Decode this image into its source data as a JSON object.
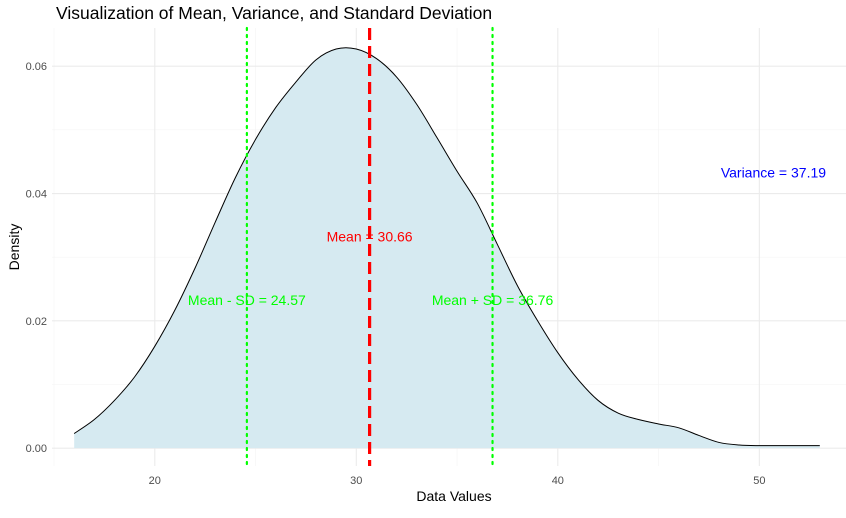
{
  "chart_data": {
    "type": "area",
    "title": "Visualization of Mean, Variance, and Standard Deviation",
    "xlabel": "Data Values",
    "ylabel": "Density",
    "xlim": [
      14.9,
      54.3
    ],
    "ylim": [
      -0.0028,
      0.066
    ],
    "x_ticks": [
      20,
      30,
      40,
      50
    ],
    "y_ticks": [
      0.0,
      0.02,
      0.04,
      0.06
    ],
    "x_tick_labels": [
      "20",
      "30",
      "40",
      "50"
    ],
    "y_tick_labels": [
      "0.00",
      "0.02",
      "0.04",
      "0.06"
    ],
    "grid": true,
    "colors": {
      "fill": "#d6eaf1",
      "curve": "#000000",
      "mean_line": "#ff0000",
      "sd_lines": "#00ff00",
      "variance_text": "#0000ff"
    },
    "series": [
      {
        "x": [
          16.0,
          17.0,
          18.0,
          19.0,
          20.0,
          21.0,
          22.0,
          23.0,
          24.0,
          25.0,
          26.0,
          27.0,
          28.0,
          29.0,
          30.0,
          31.0,
          32.0,
          33.0,
          34.0,
          35.0,
          36.0,
          37.0,
          38.0,
          39.0,
          40.0,
          41.0,
          42.0,
          43.0,
          44.0,
          45.0,
          46.0,
          47.0,
          48.0,
          49.0,
          50.0,
          51.0,
          52.0,
          53.0
        ],
        "y": [
          0.0023,
          0.0045,
          0.0075,
          0.0112,
          0.016,
          0.0217,
          0.0283,
          0.0355,
          0.0425,
          0.0485,
          0.0535,
          0.0575,
          0.061,
          0.0627,
          0.0627,
          0.0612,
          0.0583,
          0.054,
          0.0488,
          0.0435,
          0.0385,
          0.032,
          0.0255,
          0.02,
          0.015,
          0.0108,
          0.0075,
          0.0055,
          0.0045,
          0.0038,
          0.0032,
          0.002,
          0.0009,
          0.0005,
          0.0004,
          0.0004,
          0.0004,
          0.0004
        ]
      }
    ],
    "reference_lines": [
      {
        "x": 30.66,
        "style": "dashed",
        "color": "#ff0000"
      },
      {
        "x": 24.57,
        "style": "dotted",
        "color": "#00ff00"
      },
      {
        "x": 36.76,
        "style": "dotted",
        "color": "#00ff00"
      }
    ],
    "annotations": [
      {
        "text": "Mean = 30.66",
        "x": 30.66,
        "y": 0.0325,
        "color": "#ff0000"
      },
      {
        "text": "Mean - SD = 24.57",
        "x": 24.57,
        "y": 0.0225,
        "color": "#00ff00"
      },
      {
        "text": "Mean + SD = 36.76",
        "x": 36.76,
        "y": 0.0225,
        "color": "#00ff00"
      },
      {
        "text": "Variance = 37.19",
        "x": 50.7,
        "y": 0.0425,
        "color": "#0000ff"
      }
    ]
  }
}
